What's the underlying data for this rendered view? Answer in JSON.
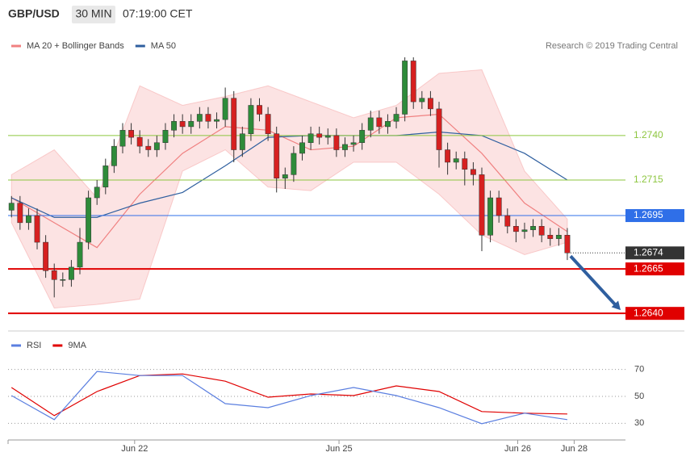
{
  "chart_data": [
    {
      "type": "candlestick",
      "title": "GBP/USD",
      "interval": "30 MIN",
      "time": "07:19:00 CET",
      "source": "Research © 2019 Trading Central",
      "xlim": [
        -0.4,
        71.8
      ],
      "ylim": [
        1.2631,
        1.2789
      ],
      "x": [
        0,
        1,
        2,
        3,
        4,
        5,
        6,
        7,
        8,
        9,
        10,
        11,
        12,
        13,
        14,
        15,
        16,
        17,
        18,
        19,
        20,
        21,
        22,
        23,
        24,
        25,
        26,
        27,
        28,
        29,
        30,
        31,
        32,
        33,
        34,
        35,
        36,
        37,
        38,
        39,
        40,
        41,
        42,
        43,
        44,
        45,
        46,
        47,
        48,
        49,
        50,
        51,
        52,
        53,
        54,
        55,
        56,
        57,
        58,
        59,
        60,
        61,
        62,
        63,
        64,
        65
      ],
      "open": [
        1.2698,
        1.2702,
        1.2691,
        1.2695,
        1.268,
        1.2664,
        1.2659,
        1.2659,
        1.2666,
        1.268,
        1.2705,
        1.2711,
        1.2723,
        1.2734,
        1.2743,
        1.2739,
        1.2734,
        1.2732,
        1.2736,
        1.2743,
        1.2748,
        1.2745,
        1.2748,
        1.2752,
        1.2748,
        1.2749,
        1.2761,
        1.2732,
        1.2741,
        1.2757,
        1.2752,
        1.2741,
        1.2716,
        1.2718,
        1.273,
        1.2736,
        1.2741,
        1.2739,
        1.274,
        1.2732,
        1.2735,
        1.2736,
        1.2743,
        1.275,
        1.2745,
        1.2748,
        1.2752,
        1.2782,
        1.2759,
        1.2761,
        1.2755,
        1.2732,
        1.2725,
        1.2727,
        1.2721,
        1.2718,
        1.2684,
        1.2705,
        1.2695,
        1.2689,
        1.2686,
        1.2687,
        1.2689,
        1.2684,
        1.2682,
        1.2684
      ],
      "high": [
        1.2706,
        1.2706,
        1.2699,
        1.2699,
        1.2684,
        1.2668,
        1.2663,
        1.267,
        1.2688,
        1.2709,
        1.2715,
        1.2727,
        1.2738,
        1.2747,
        1.2747,
        1.2743,
        1.2738,
        1.274,
        1.2747,
        1.2752,
        1.2752,
        1.2752,
        1.2756,
        1.2756,
        1.2753,
        1.2767,
        1.2765,
        1.2745,
        1.2761,
        1.2761,
        1.2756,
        1.2745,
        1.2722,
        1.2734,
        1.274,
        1.2745,
        1.2745,
        1.2744,
        1.2744,
        1.2739,
        1.274,
        1.2747,
        1.2754,
        1.2754,
        1.2752,
        1.2756,
        1.2784,
        1.2784,
        1.2765,
        1.2765,
        1.2759,
        1.2736,
        1.2731,
        1.2731,
        1.2725,
        1.2722,
        1.2709,
        1.2709,
        1.2699,
        1.2693,
        1.2691,
        1.2693,
        1.2693,
        1.2688,
        1.2688,
        1.2688
      ],
      "low": [
        1.2694,
        1.2687,
        1.2687,
        1.2676,
        1.266,
        1.2649,
        1.2655,
        1.2655,
        1.2662,
        1.2676,
        1.2701,
        1.2707,
        1.2719,
        1.273,
        1.2735,
        1.273,
        1.2728,
        1.2728,
        1.2732,
        1.2739,
        1.2741,
        1.2741,
        1.2744,
        1.2744,
        1.2744,
        1.2745,
        1.2725,
        1.2728,
        1.2737,
        1.2748,
        1.2737,
        1.2708,
        1.271,
        1.2714,
        1.2726,
        1.2732,
        1.2735,
        1.2735,
        1.2728,
        1.2728,
        1.2731,
        1.2732,
        1.2739,
        1.2741,
        1.2741,
        1.2744,
        1.2748,
        1.2755,
        1.2755,
        1.2751,
        1.2722,
        1.2718,
        1.2721,
        1.2712,
        1.2712,
        1.2675,
        1.268,
        1.2691,
        1.2685,
        1.268,
        1.2682,
        1.2683,
        1.268,
        1.2678,
        1.2678,
        1.267
      ],
      "close": [
        1.2702,
        1.2691,
        1.2695,
        1.268,
        1.2664,
        1.2659,
        1.2659,
        1.2666,
        1.268,
        1.2705,
        1.2711,
        1.2723,
        1.2734,
        1.2743,
        1.2739,
        1.2734,
        1.2732,
        1.2736,
        1.2743,
        1.2748,
        1.2745,
        1.2748,
        1.2752,
        1.2748,
        1.2749,
        1.2761,
        1.2732,
        1.2741,
        1.2757,
        1.2752,
        1.2741,
        1.2716,
        1.2718,
        1.273,
        1.2736,
        1.2741,
        1.2739,
        1.274,
        1.2732,
        1.2735,
        1.2736,
        1.2743,
        1.275,
        1.2745,
        1.2748,
        1.2752,
        1.2782,
        1.2759,
        1.2761,
        1.2755,
        1.2732,
        1.2725,
        1.2727,
        1.2721,
        1.2718,
        1.2684,
        1.2705,
        1.2695,
        1.2689,
        1.2686,
        1.2687,
        1.2689,
        1.2684,
        1.2682,
        1.2684,
        1.2674
      ],
      "up_color": "#2e8b3a",
      "down_color": "#d62020",
      "series": [
        {
          "name": "MA 20 + Bollinger Bands",
          "color": "#f08080",
          "x": [
            0,
            5,
            10,
            15,
            20,
            25,
            30,
            35,
            40,
            45,
            50,
            55,
            60,
            65
          ],
          "values": [
            1.2705,
            1.2691,
            1.2677,
            1.2707,
            1.273,
            1.2745,
            1.2743,
            1.2732,
            1.2734,
            1.275,
            1.2752,
            1.273,
            1.2702,
            1.2686
          ],
          "upper": [
            1.2718,
            1.2732,
            1.2705,
            1.2768,
            1.2757,
            1.2762,
            1.2768,
            1.2759,
            1.275,
            1.2757,
            1.2775,
            1.2777,
            1.272,
            1.2693
          ],
          "lower": [
            1.2691,
            1.2643,
            1.2645,
            1.2648,
            1.272,
            1.2732,
            1.2711,
            1.2709,
            1.2725,
            1.2725,
            1.2707,
            1.2684,
            1.2673,
            1.268
          ]
        },
        {
          "name": "MA 50",
          "color": "#2f5f9f",
          "x": [
            0,
            5,
            10,
            15,
            20,
            25,
            30,
            35,
            40,
            45,
            50,
            55,
            60,
            65
          ],
          "values": [
            1.2705,
            1.2694,
            1.2694,
            1.2702,
            1.2708,
            1.2723,
            1.2739,
            1.274,
            1.274,
            1.274,
            1.2742,
            1.274,
            1.273,
            1.2715
          ]
        }
      ],
      "levels": [
        {
          "value": 1.274,
          "label": "1.2740",
          "color": "#8dc63f",
          "style": "thin",
          "boxed": false
        },
        {
          "value": 1.2715,
          "label": "1.2715",
          "color": "#8dc63f",
          "style": "thin",
          "boxed": false
        },
        {
          "value": 1.2695,
          "label": "1.2695",
          "color": "#2f6fe8",
          "style": "thin",
          "boxed": true
        },
        {
          "value": 1.2674,
          "label": "1.2674",
          "color": "#333333",
          "style": "dotted",
          "boxed": true
        },
        {
          "value": 1.2665,
          "label": "1.2665",
          "color": "#e00000",
          "style": "thick",
          "boxed": true
        },
        {
          "value": 1.264,
          "label": "1.2640",
          "color": "#e00000",
          "style": "thick",
          "boxed": true
        }
      ],
      "forecast_target": 1.264,
      "forecast_color": "#2f5f9f"
    },
    {
      "type": "line",
      "xlim": [
        -0.4,
        71.8
      ],
      "ylim": [
        20,
        80
      ],
      "yticks": [
        30,
        50,
        70
      ],
      "xticks": [
        {
          "value": 14.4,
          "label": "Jun 22"
        },
        {
          "value": 38.3,
          "label": "Jun 25"
        },
        {
          "value": 59.2,
          "label": "Jun 26"
        },
        {
          "value": 65.8,
          "label": "Jun 28"
        }
      ],
      "series": [
        {
          "name": "RSI",
          "color": "#5b7fe0",
          "x": [
            0,
            5,
            10,
            15,
            20,
            25,
            30,
            35,
            40,
            45,
            50,
            55,
            60,
            65
          ],
          "values": [
            50.6,
            32.7,
            68.5,
            65.5,
            65.5,
            44.6,
            41.6,
            50.6,
            56.6,
            50.6,
            41.6,
            29.7,
            37.5,
            32.7
          ]
        },
        {
          "name": "9MA",
          "color": "#e00000",
          "x": [
            0,
            5,
            10,
            15,
            20,
            25,
            30,
            35,
            40,
            45,
            50,
            55,
            60,
            65
          ],
          "values": [
            56.6,
            35.7,
            53.6,
            65.5,
            66.7,
            61.3,
            49.4,
            51.8,
            50.6,
            57.8,
            53.6,
            38.7,
            37.5,
            36.9
          ]
        }
      ]
    }
  ]
}
